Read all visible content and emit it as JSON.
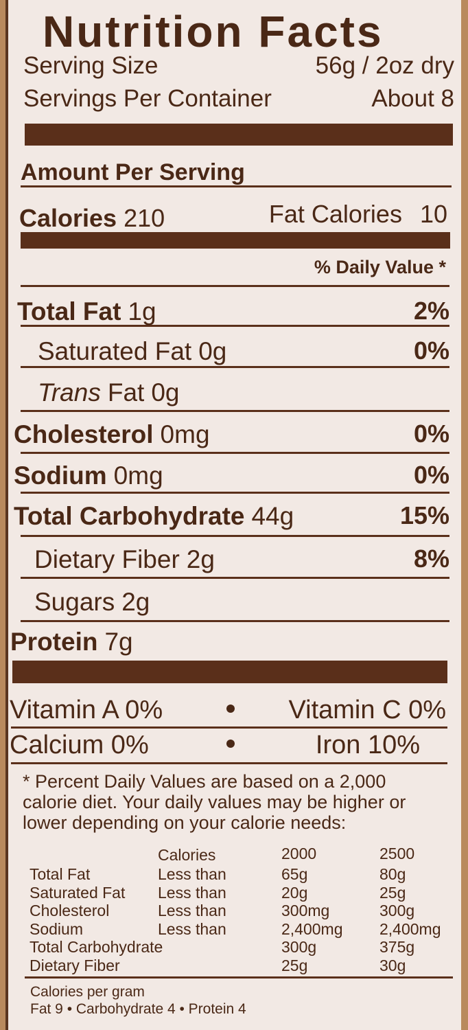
{
  "title": "Nutrition Facts",
  "serving": [
    {
      "label": "Serving Size",
      "value": "56g / 2oz dry"
    },
    {
      "label": "Servings Per Container",
      "value": "About 8"
    }
  ],
  "amount_per_serving": "Amount Per Serving",
  "calories": {
    "label": "Calories",
    "value": "210",
    "fat_label": "Fat Calories",
    "fat_value": "10"
  },
  "daily_value_header": "% Daily Value *",
  "nutrients": [
    {
      "name": "Total Fat",
      "amount": "1g",
      "dv": "2%"
    },
    {
      "name": "Saturated Fat",
      "amount": "0g",
      "dv": "0%"
    },
    {
      "name_italic": "Trans",
      "name": "Fat",
      "amount": "0g"
    },
    {
      "name": "Cholesterol",
      "amount": "0mg",
      "dv": "0%"
    },
    {
      "name": "Sodium",
      "amount": "0mg",
      "dv": "0%"
    },
    {
      "name": "Total Carbohydrate",
      "amount": "44g",
      "dv": "15%"
    },
    {
      "name": "Dietary Fiber",
      "amount": "2g",
      "dv": "8%"
    },
    {
      "name": "Sugars",
      "amount": "2g"
    },
    {
      "name": "Protein",
      "amount": "7g"
    }
  ],
  "vitamins": [
    [
      "Vitamin A 0%",
      "Vitamin C 0%"
    ],
    [
      "Calcium 0%",
      "Iron 10%"
    ]
  ],
  "footnote": [
    "* Percent Daily Values are based on a 2,000",
    "calorie diet. Your daily values may be higher or",
    "lower depending on your calorie needs:"
  ],
  "dv_table": {
    "header": {
      "label": "Calories",
      "columns": [
        "2000",
        "2500"
      ]
    },
    "rows": [
      {
        "name": "Total Fat",
        "limit": "Less than",
        "values": [
          "65g",
          "80g"
        ]
      },
      {
        "name": "Saturated Fat",
        "limit": "Less than",
        "values": [
          "20g",
          "25g"
        ]
      },
      {
        "name": "Cholesterol",
        "limit": "Less than",
        "values": [
          "300mg",
          "300g"
        ]
      },
      {
        "name": "Sodium",
        "limit": "Less than",
        "values": [
          "2,400mg",
          "2,400mg"
        ]
      },
      {
        "name": "Total Carbohydrate",
        "values": [
          "300g",
          "375g"
        ]
      },
      {
        "name": "Dietary Fiber",
        "values": [
          "25g",
          "30g"
        ]
      }
    ]
  },
  "calories_per_gram": {
    "title": "Calories per gram",
    "text": "Fat 9 • Carbohydrate 4 • Protein 4"
  }
}
